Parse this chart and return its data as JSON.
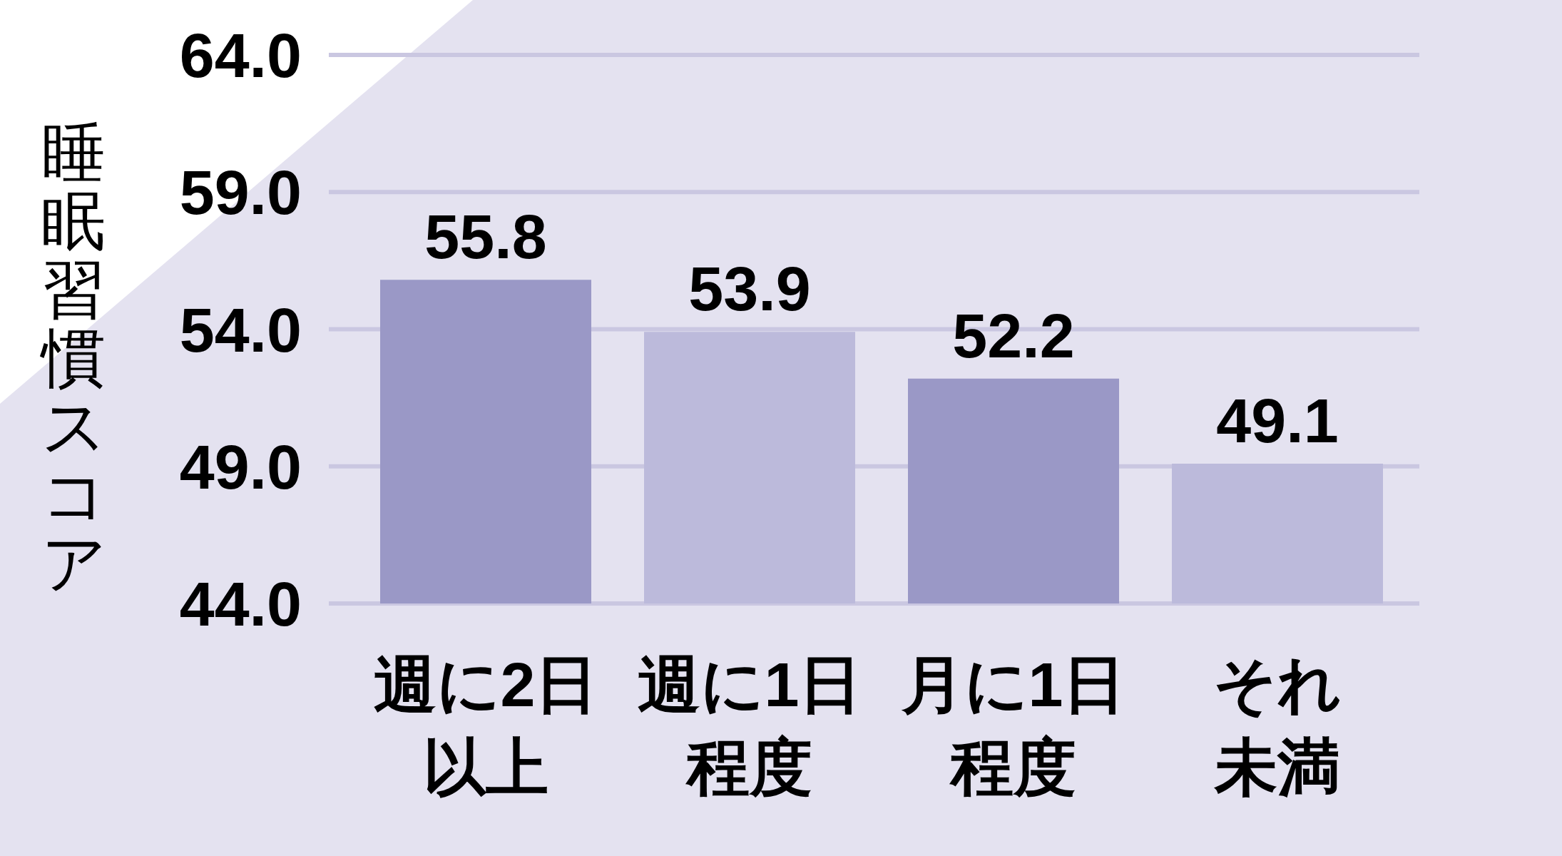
{
  "chart_data": {
    "type": "bar",
    "ylabel": "睡眠習慣スコア",
    "categories": [
      "週に2日以上",
      "週に1日程度",
      "月に1日程度",
      "それ未満"
    ],
    "values": [
      55.8,
      53.9,
      52.2,
      49.1
    ],
    "colors": [
      "#9a98c6",
      "#bcbadb",
      "#9a98c6",
      "#bcbadb"
    ],
    "ylim": [
      44,
      64
    ],
    "yticks": [
      {
        "value": 44,
        "label": "44.0"
      },
      {
        "value": 49,
        "label": "49.0"
      },
      {
        "value": 54,
        "label": "54.0"
      },
      {
        "value": 59,
        "label": "59.0"
      },
      {
        "value": 64,
        "label": "64.0"
      }
    ],
    "grid": "y",
    "data_labels": true
  }
}
